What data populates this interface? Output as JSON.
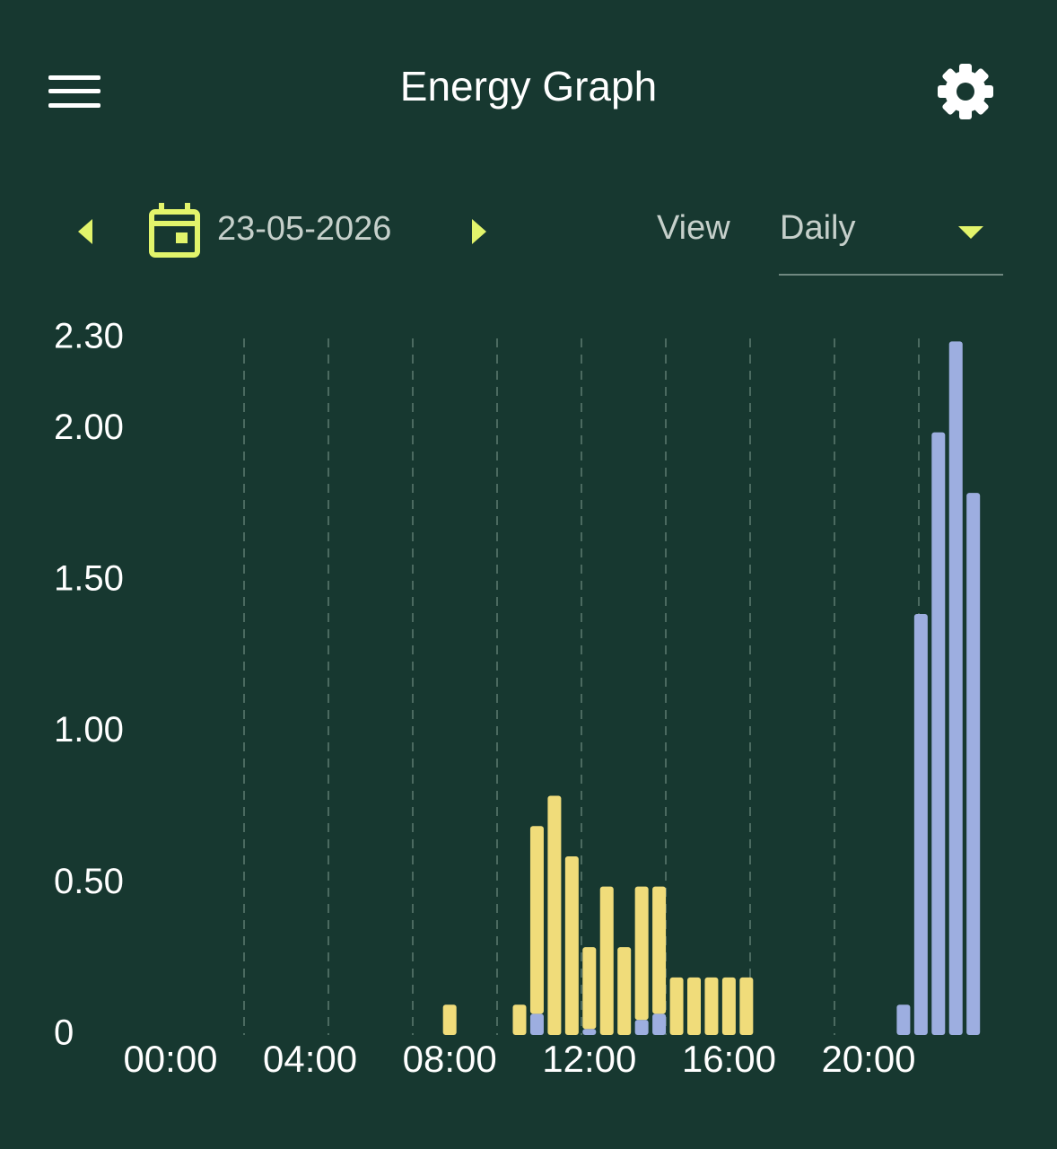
{
  "header": {
    "title": "Energy Graph"
  },
  "controls": {
    "date": "23-05-2026",
    "view_label": "View",
    "view_value": "Daily"
  },
  "chart_data": {
    "type": "bar",
    "stacked": true,
    "categories": [
      "00:00",
      null,
      null,
      null,
      null,
      null,
      null,
      null,
      "04:00",
      null,
      null,
      null,
      null,
      null,
      null,
      null,
      "08:00",
      null,
      null,
      null,
      null,
      null,
      null,
      null,
      "12:00",
      null,
      null,
      null,
      null,
      null,
      null,
      null,
      "16:00",
      null,
      null,
      null,
      null,
      null,
      null,
      null,
      "20:00",
      null,
      null,
      null,
      null,
      null,
      null,
      null
    ],
    "series": [
      {
        "color": "#9daee0",
        "values": [
          null,
          null,
          null,
          null,
          null,
          null,
          null,
          null,
          null,
          null,
          null,
          null,
          null,
          null,
          null,
          null,
          null,
          null,
          null,
          null,
          null,
          0.07,
          null,
          null,
          0.02,
          null,
          null,
          0.05,
          0.07,
          null,
          null,
          null,
          null,
          null,
          null,
          null,
          null,
          null,
          null,
          null,
          null,
          null,
          0.1,
          1.39,
          1.99,
          2.29,
          1.79,
          null
        ]
      },
      {
        "color": "#f0dc7a",
        "values": [
          null,
          null,
          null,
          null,
          null,
          null,
          null,
          null,
          null,
          null,
          null,
          null,
          null,
          null,
          null,
          null,
          0.1,
          null,
          null,
          null,
          0.1,
          0.62,
          0.79,
          0.59,
          0.27,
          0.49,
          0.29,
          0.44,
          0.42,
          0.19,
          0.19,
          0.19,
          0.19,
          0.19,
          null,
          null,
          null,
          null,
          null,
          null,
          null,
          null,
          null,
          null,
          null,
          null,
          null,
          null
        ]
      }
    ],
    "ylim": [
      0,
      2.3
    ],
    "yticks": [
      0,
      {
        "value": 0.5,
        "label": "0.50"
      },
      {
        "value": 1,
        "label": "1.00"
      },
      {
        "value": 1.5,
        "label": "1.50"
      },
      {
        "value": 2,
        "label": "2.00"
      },
      {
        "value": 2.3,
        "label": "2.30"
      }
    ]
  }
}
